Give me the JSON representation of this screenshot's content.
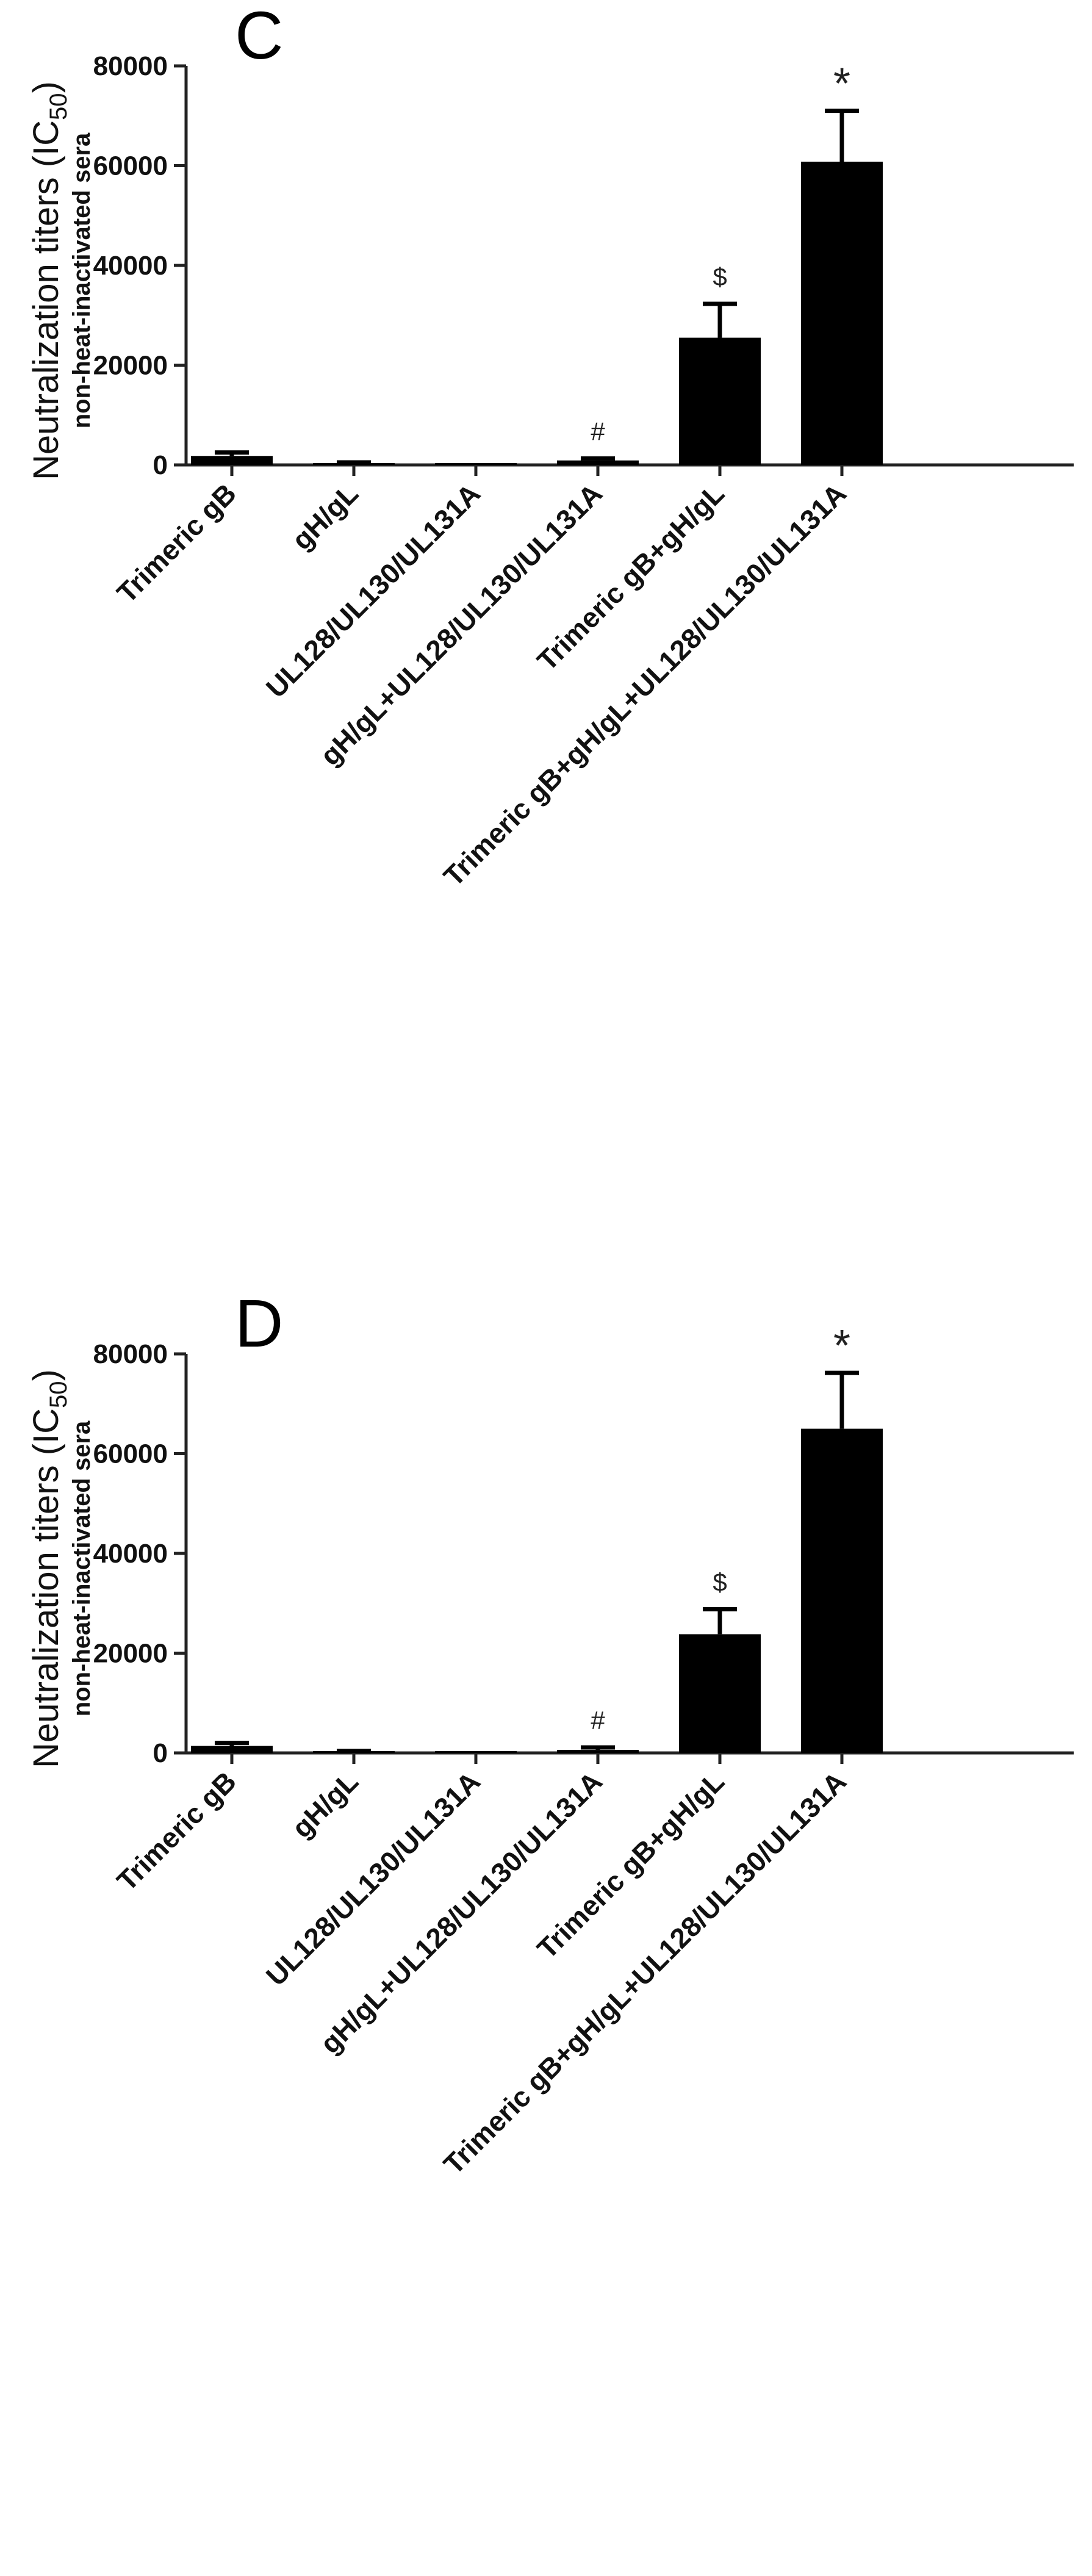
{
  "chart_data": [
    {
      "type": "bar",
      "panel_label": "C",
      "ylabel": "Neutralization titers (IC",
      "ylabel_sub": "50",
      "ylabel_end": ")",
      "ylabel2": "non-heat-inactivated sera",
      "ylim": [
        0,
        80000
      ],
      "yticks": [
        0,
        20000,
        40000,
        60000,
        80000
      ],
      "ytick_labels": [
        "0",
        "20000",
        "40000",
        "60000",
        "80000"
      ],
      "categories": [
        "Trimeric gB",
        "gH/gL",
        "UL128/UL130/UL131A",
        "gH/gL+UL128/UL130/UL131A",
        "Trimeric gB+gH/gL",
        "Trimeric gB+gH/gL+UL128/UL130/UL131A"
      ],
      "values": [
        1800,
        300,
        100,
        900,
        25500,
        60800
      ],
      "errors": [
        700,
        200,
        0,
        400,
        6800,
        10200
      ],
      "annotations": [
        "",
        "",
        "",
        "#",
        "$",
        "*"
      ],
      "color": "#000000"
    },
    {
      "type": "bar",
      "panel_label": "D",
      "ylabel": "Neutralization titers (IC",
      "ylabel_sub": "50",
      "ylabel_end": ")",
      "ylabel2": "non-heat-inactivated sera",
      "ylim": [
        0,
        80000
      ],
      "yticks": [
        0,
        20000,
        40000,
        60000,
        80000
      ],
      "ytick_labels": [
        "0",
        "20000",
        "40000",
        "60000",
        "80000"
      ],
      "categories": [
        "Trimeric gB",
        "gH/gL",
        "UL128/UL130/UL131A",
        "gH/gL+UL128/UL130/UL131A",
        "Trimeric gB+gH/gL",
        "Trimeric gB+gH/gL+UL128/UL130/UL131A"
      ],
      "values": [
        1400,
        300,
        100,
        600,
        23800,
        65000
      ],
      "errors": [
        600,
        100,
        0,
        500,
        5000,
        11200
      ],
      "annotations": [
        "",
        "",
        "",
        "#",
        "$",
        "*"
      ],
      "color": "#000000"
    }
  ]
}
